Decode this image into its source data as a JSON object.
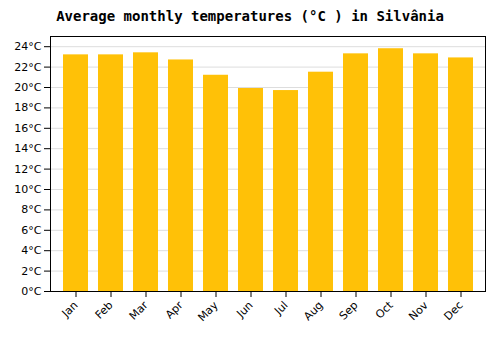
{
  "chart_data": {
    "type": "bar",
    "title": "Average monthly temperatures (°C ) in Silvânia",
    "categories": [
      "Jan",
      "Feb",
      "Mar",
      "Apr",
      "May",
      "Jun",
      "Jul",
      "Aug",
      "Sep",
      "Oct",
      "Nov",
      "Dec"
    ],
    "values": [
      23.2,
      23.2,
      23.4,
      22.7,
      21.2,
      19.9,
      19.7,
      21.5,
      23.3,
      23.8,
      23.3,
      22.9
    ],
    "color": "#FFC107",
    "ylim": [
      0,
      25
    ],
    "yticks": [
      {
        "value": 0,
        "label": "0°C"
      },
      {
        "value": 2,
        "label": "2°C"
      },
      {
        "value": 4,
        "label": "4°C"
      },
      {
        "value": 6,
        "label": "6°C"
      },
      {
        "value": 8,
        "label": "8°C"
      },
      {
        "value": 10,
        "label": "10°C"
      },
      {
        "value": 12,
        "label": "12°C"
      },
      {
        "value": 14,
        "label": "14°C"
      },
      {
        "value": 16,
        "label": "16°C"
      },
      {
        "value": 18,
        "label": "18°C"
      },
      {
        "value": 20,
        "label": "20°C"
      },
      {
        "value": 22,
        "label": "22°C"
      },
      {
        "value": 24,
        "label": "24°C"
      }
    ],
    "grid": true
  }
}
